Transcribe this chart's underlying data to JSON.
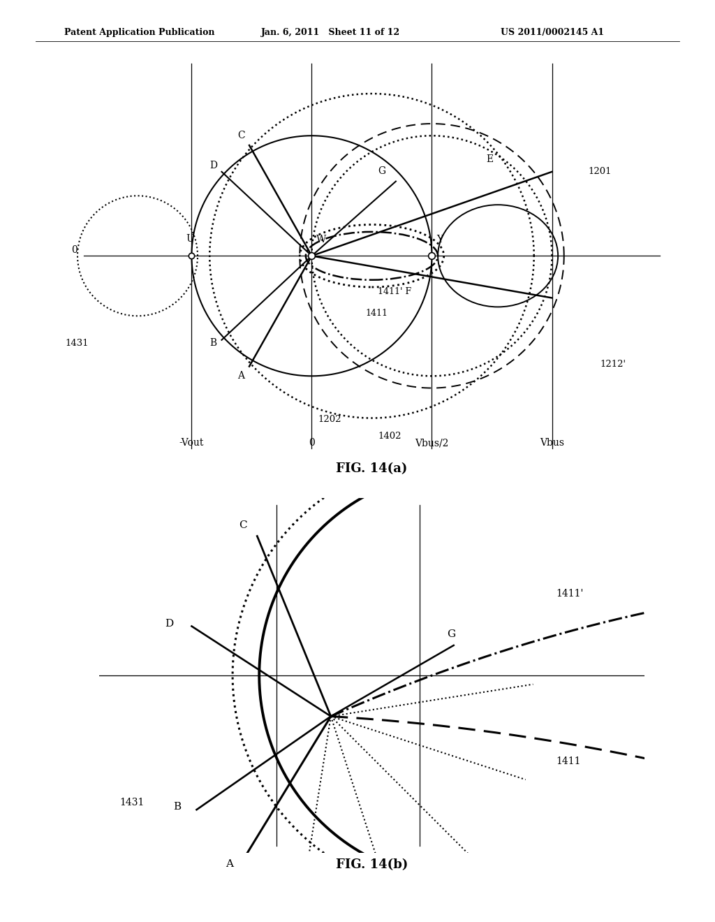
{
  "header_left": "Patent Application Publication",
  "header_mid": "Jan. 6, 2011   Sheet 11 of 12",
  "header_right": "US 2011/0002145 A1",
  "fig_a_title": "FIG. 14(a)",
  "fig_b_title": "FIG. 14(b)",
  "bg_color": "#ffffff"
}
